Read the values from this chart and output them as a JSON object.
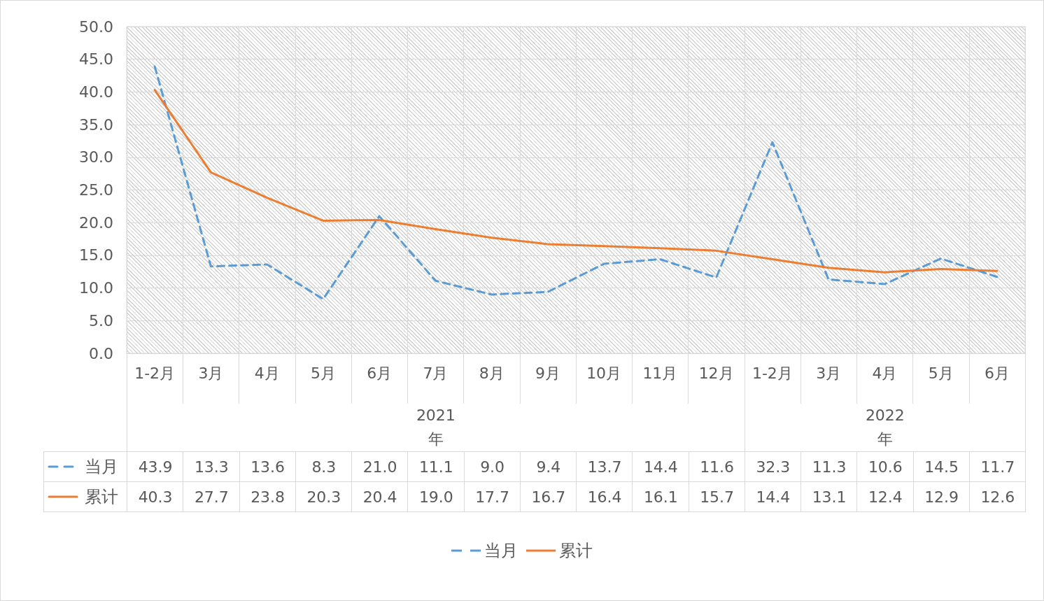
{
  "chart_data": {
    "type": "line",
    "categories": [
      "1-2月",
      "3月",
      "4月",
      "5月",
      "6月",
      "7月",
      "8月",
      "9月",
      "10月",
      "11月",
      "12月",
      "1-2月",
      "3月",
      "4月",
      "5月",
      "6月"
    ],
    "series": [
      {
        "name": "当月",
        "color": "#5b9bd5",
        "line_style": "dashed",
        "values": [
          43.9,
          13.3,
          13.6,
          8.3,
          21.0,
          11.1,
          9.0,
          9.4,
          13.7,
          14.4,
          11.6,
          32.3,
          11.3,
          10.6,
          14.5,
          11.7
        ],
        "value_labels": [
          "43.9",
          "13.3",
          "13.6",
          "8.3",
          "21.0",
          "11.1",
          "9.0",
          "9.4",
          "13.7",
          "14.4",
          "11.6",
          "32.3",
          "11.3",
          "10.6",
          "14.5",
          "11.7"
        ]
      },
      {
        "name": "累计",
        "color": "#ed7d31",
        "line_style": "solid",
        "values": [
          40.3,
          27.7,
          23.8,
          20.3,
          20.4,
          19.0,
          17.7,
          16.7,
          16.4,
          16.1,
          15.7,
          14.4,
          13.1,
          12.4,
          12.9,
          12.6
        ],
        "value_labels": [
          "40.3",
          "27.7",
          "23.8",
          "20.3",
          "20.4",
          "19.0",
          "17.7",
          "16.7",
          "16.4",
          "16.1",
          "15.7",
          "14.4",
          "13.1",
          "12.4",
          "12.9",
          "12.6"
        ]
      }
    ],
    "ylim": [
      0,
      50
    ],
    "yticks": [
      {
        "value": 0,
        "label": "0.0"
      },
      {
        "value": 5,
        "label": "5.0"
      },
      {
        "value": 10,
        "label": "10.0"
      },
      {
        "value": 15,
        "label": "15.0"
      },
      {
        "value": 20,
        "label": "20.0"
      },
      {
        "value": 25,
        "label": "25.0"
      },
      {
        "value": 30,
        "label": "30.0"
      },
      {
        "value": 35,
        "label": "35.0"
      },
      {
        "value": 40,
        "label": "40.0"
      },
      {
        "value": 45,
        "label": "45.0"
      },
      {
        "value": 50,
        "label": "50.0"
      }
    ],
    "grid": true,
    "legend": "bottom",
    "marker": "none",
    "annotations": [
      "2021年",
      "2022年"
    ]
  }
}
